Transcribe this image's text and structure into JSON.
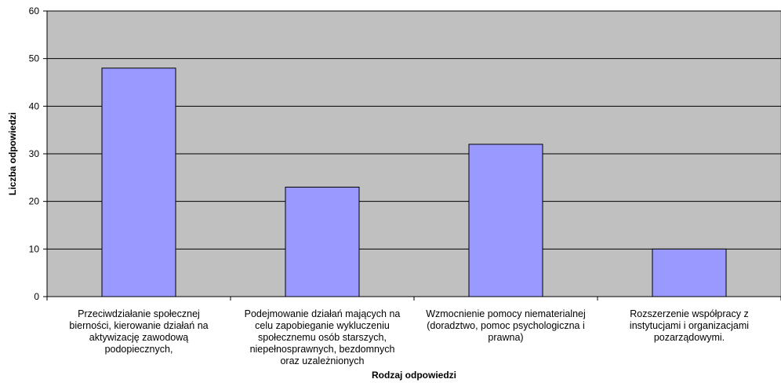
{
  "chart_data": {
    "type": "bar",
    "categories": [
      "Przeciwdziałanie społecznej\nbierności, kierowanie działań na\naktywizację zawodową\npodopiecznych,",
      "Podejmowanie działań mających na\ncelu zapobieganie wykluczeniu\nspołecznemu osób starszych,\nniepełnosprawnych, bezdomnych\noraz uzależnionych",
      "Wzmocnienie pomocy niematerialnej\n(doradztwo, pomoc psychologiczna i\nprawna)",
      "Rozszerzenie współpracy z\ninstytucjami i organizacjami\npozarządowymi."
    ],
    "values": [
      48,
      23,
      32,
      10
    ],
    "xlabel": "Rodzaj odpowiedzi",
    "ylabel": "Liczba odpowiedzi",
    "ylim": [
      0,
      60
    ],
    "yticks": [
      0,
      10,
      20,
      30,
      40,
      50,
      60
    ],
    "grid": true,
    "colors": {
      "bar_fill": "#9999ff",
      "bar_stroke": "#000000",
      "plot_background": "#c0c0c0",
      "gridline": "#000000"
    }
  }
}
